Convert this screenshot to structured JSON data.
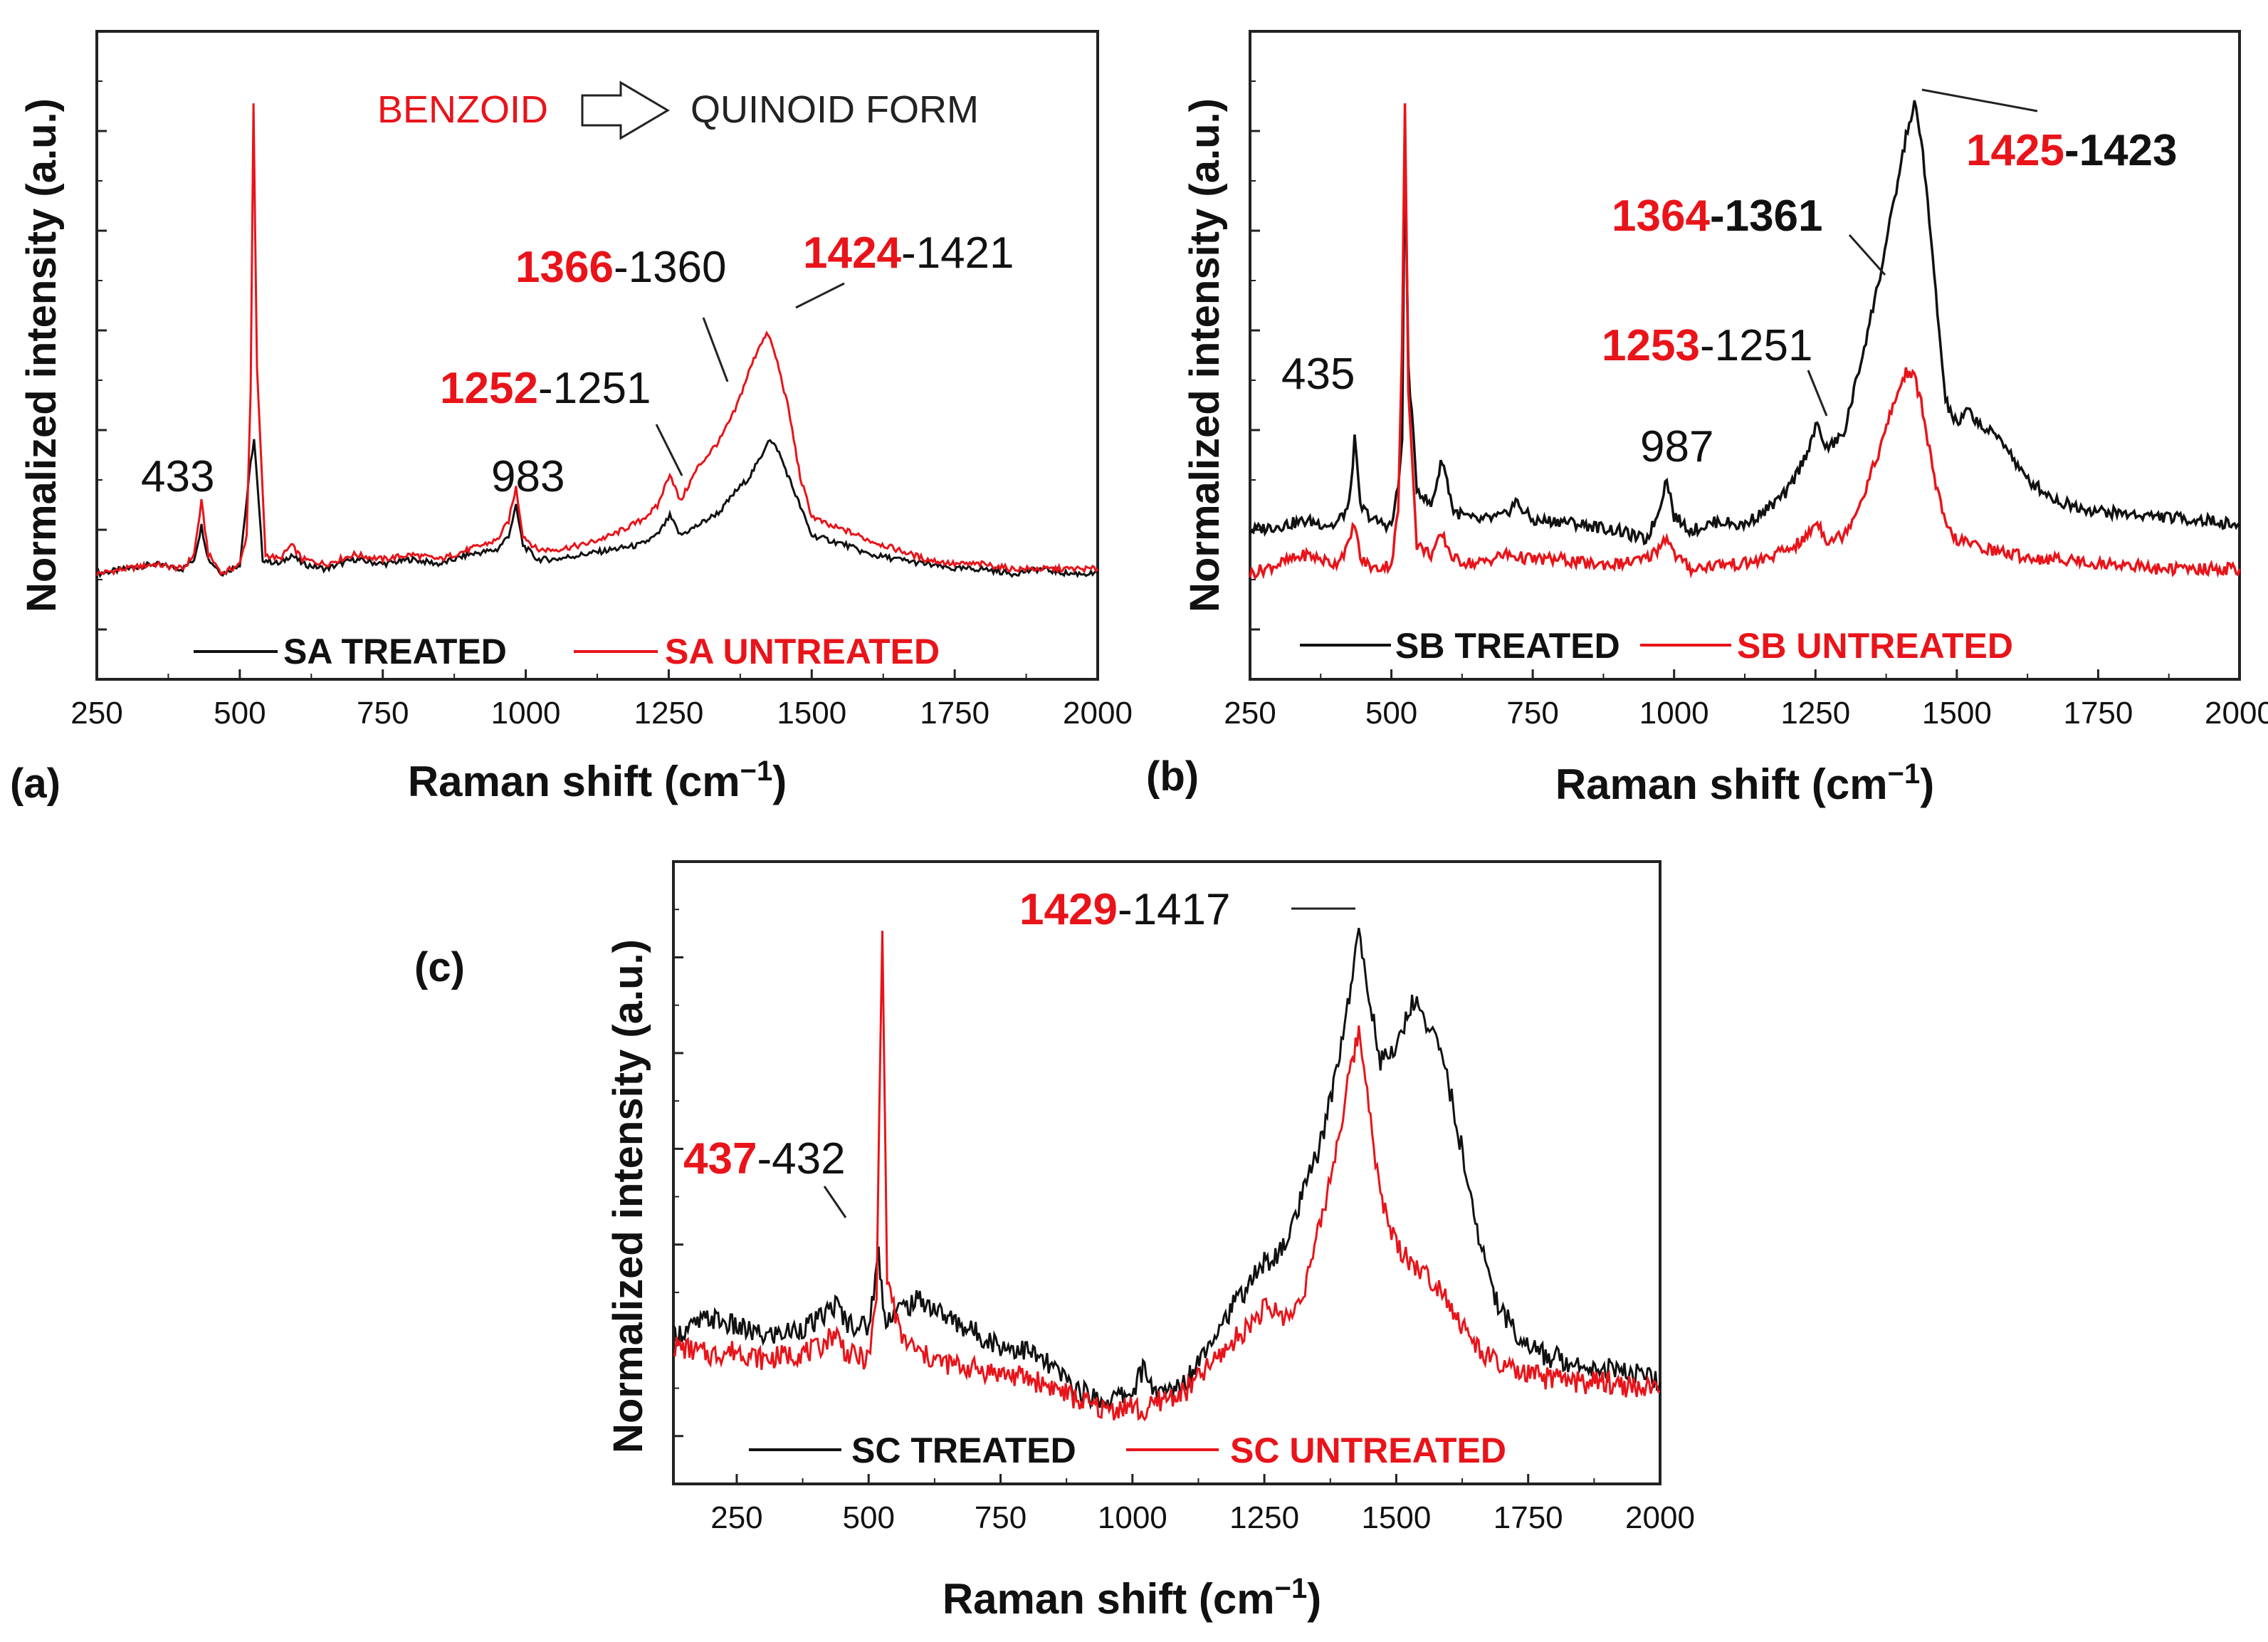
{
  "colors": {
    "treated": "#111111",
    "untreated": "#e8141a"
  },
  "chart_data": [
    {
      "type": "line",
      "panel_label": "(a)",
      "xlabel": "Raman shift (cm",
      "xlabel_sup": "−1",
      "xlabel_end": ")",
      "ylabel": "Normalized intensity (a.u.)",
      "xlim": [
        250,
        2000
      ],
      "ylim": [
        -0.2,
        1.15
      ],
      "x_ticks": [
        250,
        500,
        750,
        1000,
        1250,
        1500,
        1750,
        2000
      ],
      "transform_from": "BENZOID",
      "transform_to": "QUINOID FORM",
      "series": [
        {
          "name": "SA TREATED",
          "color": "#111111",
          "x": [
            250,
            300,
            350,
            400,
            420,
            433,
            445,
            470,
            500,
            519,
            525,
            540,
            570,
            590,
            610,
            650,
            700,
            750,
            800,
            850,
            900,
            950,
            970,
            983,
            995,
            1020,
            1050,
            1100,
            1150,
            1200,
            1230,
            1252,
            1270,
            1300,
            1340,
            1366,
            1390,
            1410,
            1424,
            1440,
            1460,
            1480,
            1500,
            1530,
            1560,
            1600,
            1650,
            1700,
            1750,
            1800,
            1850,
            1900,
            1950,
            2000
          ],
          "values": [
            0.02,
            0.03,
            0.04,
            0.03,
            0.05,
            0.12,
            0.05,
            0.02,
            0.04,
            0.25,
            0.3,
            0.05,
            0.04,
            0.06,
            0.04,
            0.03,
            0.05,
            0.04,
            0.05,
            0.04,
            0.06,
            0.07,
            0.1,
            0.16,
            0.08,
            0.05,
            0.05,
            0.06,
            0.07,
            0.08,
            0.1,
            0.14,
            0.1,
            0.12,
            0.15,
            0.19,
            0.22,
            0.26,
            0.3,
            0.28,
            0.22,
            0.16,
            0.1,
            0.09,
            0.08,
            0.06,
            0.05,
            0.04,
            0.03,
            0.03,
            0.02,
            0.03,
            0.02,
            0.02
          ]
        },
        {
          "name": "SA UNTREATED",
          "color": "#e8141a",
          "x": [
            250,
            300,
            350,
            400,
            420,
            433,
            445,
            470,
            500,
            512,
            519,
            524,
            530,
            545,
            570,
            590,
            610,
            650,
            700,
            750,
            800,
            850,
            900,
            950,
            970,
            983,
            995,
            1020,
            1050,
            1100,
            1150,
            1200,
            1230,
            1252,
            1270,
            1300,
            1340,
            1366,
            1390,
            1410,
            1424,
            1440,
            1460,
            1480,
            1500,
            1530,
            1560,
            1600,
            1650,
            1700,
            1750,
            1800,
            1850,
            1900,
            1950,
            2000
          ],
          "values": [
            0.02,
            0.03,
            0.04,
            0.03,
            0.06,
            0.17,
            0.06,
            0.02,
            0.04,
            0.1,
            0.4,
            1.0,
            0.45,
            0.06,
            0.05,
            0.08,
            0.05,
            0.04,
            0.06,
            0.05,
            0.06,
            0.05,
            0.07,
            0.09,
            0.13,
            0.2,
            0.1,
            0.07,
            0.07,
            0.08,
            0.1,
            0.13,
            0.16,
            0.23,
            0.17,
            0.24,
            0.3,
            0.36,
            0.44,
            0.5,
            0.52,
            0.46,
            0.36,
            0.22,
            0.14,
            0.12,
            0.11,
            0.09,
            0.07,
            0.05,
            0.04,
            0.04,
            0.03,
            0.03,
            0.03,
            0.03
          ]
        }
      ],
      "annotations": [
        {
          "a": "",
          "sep": "",
          "b": "433"
        },
        {
          "a": "",
          "sep": "",
          "b": "983"
        },
        {
          "a": "1252",
          "sep": "-",
          "b": "1251"
        },
        {
          "a": "1366",
          "sep": "-",
          "b": "1360"
        },
        {
          "a": "1424",
          "sep": "-",
          "b": "1421"
        }
      ]
    },
    {
      "type": "line",
      "panel_label": "(b)",
      "xlabel": "Raman shift (cm",
      "xlabel_sup": "−1",
      "xlabel_end": ")",
      "ylabel": "Normalized intensity (a.u.)",
      "xlim": [
        250,
        2000
      ],
      "ylim": [
        -0.2,
        1.15
      ],
      "x_ticks": [
        250,
        500,
        750,
        1000,
        1250,
        1500,
        1750,
        2000
      ],
      "series": [
        {
          "name": "SB TREATED",
          "color": "#111111",
          "x": [
            250,
            300,
            350,
            400,
            425,
            435,
            445,
            470,
            500,
            512,
            519,
            524,
            530,
            545,
            570,
            590,
            610,
            650,
            700,
            720,
            750,
            800,
            850,
            900,
            950,
            970,
            987,
            1000,
            1030,
            1080,
            1120,
            1160,
            1200,
            1230,
            1253,
            1270,
            1300,
            1330,
            1364,
            1390,
            1410,
            1425,
            1440,
            1460,
            1480,
            1500,
            1520,
            1550,
            1580,
            1620,
            1680,
            1750,
            1850,
            1950,
            2000
          ],
          "values": [
            0.11,
            0.12,
            0.13,
            0.12,
            0.16,
            0.3,
            0.16,
            0.13,
            0.12,
            0.2,
            0.3,
            0.92,
            0.45,
            0.2,
            0.16,
            0.26,
            0.15,
            0.13,
            0.14,
            0.17,
            0.13,
            0.13,
            0.12,
            0.11,
            0.09,
            0.14,
            0.22,
            0.14,
            0.11,
            0.13,
            0.12,
            0.15,
            0.19,
            0.26,
            0.33,
            0.28,
            0.31,
            0.46,
            0.64,
            0.8,
            0.93,
            1.0,
            0.9,
            0.64,
            0.38,
            0.33,
            0.36,
            0.32,
            0.3,
            0.22,
            0.17,
            0.15,
            0.14,
            0.13,
            0.12
          ]
        },
        {
          "name": "SB UNTREATED",
          "color": "#e8141a",
          "x": [
            250,
            300,
            350,
            400,
            425,
            435,
            445,
            470,
            500,
            512,
            519,
            524,
            530,
            545,
            570,
            590,
            610,
            650,
            700,
            750,
            800,
            850,
            900,
            950,
            970,
            987,
            1000,
            1030,
            1080,
            1120,
            1160,
            1200,
            1230,
            1253,
            1270,
            1300,
            1330,
            1364,
            1390,
            1410,
            1425,
            1440,
            1460,
            1480,
            1500,
            1530,
            1560,
            1600,
            1650,
            1700,
            1750,
            1800,
            1850,
            1900,
            1950,
            2000
          ],
          "values": [
            0.02,
            0.04,
            0.06,
            0.04,
            0.08,
            0.13,
            0.05,
            0.03,
            0.04,
            0.15,
            0.5,
            1.0,
            0.4,
            0.08,
            0.06,
            0.1,
            0.05,
            0.04,
            0.06,
            0.05,
            0.05,
            0.04,
            0.04,
            0.05,
            0.07,
            0.1,
            0.06,
            0.03,
            0.04,
            0.04,
            0.05,
            0.07,
            0.09,
            0.13,
            0.09,
            0.1,
            0.17,
            0.28,
            0.38,
            0.44,
            0.43,
            0.36,
            0.22,
            0.12,
            0.09,
            0.08,
            0.07,
            0.06,
            0.05,
            0.05,
            0.04,
            0.04,
            0.03,
            0.03,
            0.03,
            0.03
          ]
        }
      ],
      "annotations": [
        {
          "a": "",
          "sep": "",
          "b": "435"
        },
        {
          "a": "",
          "sep": "",
          "b": "987"
        },
        {
          "a": "1253",
          "sep": "-",
          "b": "1251"
        },
        {
          "a": "1364",
          "sep": "-",
          "b": "1361"
        },
        {
          "a": "1425",
          "sep": "-",
          "b": "1423"
        }
      ]
    },
    {
      "type": "line",
      "panel_label": "(c)",
      "xlabel": "Raman shift (cm",
      "xlabel_sup": "−1",
      "xlabel_end": ")",
      "ylabel": "Normalized intensity (a.u.)",
      "xlim": [
        130,
        2000
      ],
      "ylim": [
        -0.2,
        1.15
      ],
      "x_ticks": [
        250,
        500,
        750,
        1000,
        1250,
        1500,
        1750,
        2000
      ],
      "series": [
        {
          "name": "SC TREATED",
          "color": "#111111",
          "x": [
            130,
            200,
            250,
            300,
            350,
            400,
            437,
            460,
            500,
            519,
            530,
            560,
            600,
            650,
            700,
            750,
            800,
            850,
            900,
            950,
            1000,
            1020,
            1050,
            1100,
            1150,
            1200,
            1250,
            1280,
            1300,
            1330,
            1360,
            1390,
            1417,
            1429,
            1445,
            1470,
            1500,
            1530,
            1560,
            1590,
            1620,
            1650,
            1690,
            1730,
            1780,
            1850,
            1900,
            1950,
            2000
          ],
          "values": [
            0.12,
            0.16,
            0.14,
            0.12,
            0.13,
            0.15,
            0.19,
            0.15,
            0.14,
            0.3,
            0.16,
            0.18,
            0.2,
            0.16,
            0.13,
            0.1,
            0.09,
            0.05,
            0.0,
            -0.02,
            0.0,
            0.05,
            -0.01,
            0.02,
            0.12,
            0.2,
            0.28,
            0.3,
            0.35,
            0.45,
            0.55,
            0.72,
            0.9,
            1.0,
            0.88,
            0.72,
            0.74,
            0.85,
            0.8,
            0.72,
            0.55,
            0.36,
            0.2,
            0.12,
            0.08,
            0.06,
            0.05,
            0.04,
            0.02
          ]
        },
        {
          "name": "SC UNTREATED",
          "color": "#e8141a",
          "x": [
            130,
            200,
            250,
            300,
            350,
            400,
            437,
            460,
            500,
            515,
            520,
            526,
            535,
            560,
            600,
            650,
            700,
            750,
            800,
            850,
            900,
            950,
            1000,
            1020,
            1050,
            1100,
            1150,
            1200,
            1250,
            1280,
            1300,
            1330,
            1360,
            1390,
            1417,
            1429,
            1445,
            1470,
            1500,
            1530,
            1560,
            1590,
            1620,
            1650,
            1690,
            1730,
            1780,
            1850,
            1900,
            1950,
            2000
          ],
          "values": [
            0.1,
            0.08,
            0.09,
            0.07,
            0.08,
            0.09,
            0.13,
            0.08,
            0.07,
            0.2,
            0.6,
            1.0,
            0.25,
            0.12,
            0.08,
            0.06,
            0.05,
            0.04,
            0.03,
            0.01,
            -0.02,
            -0.04,
            -0.03,
            -0.05,
            -0.02,
            0.0,
            0.06,
            0.12,
            0.18,
            0.17,
            0.16,
            0.24,
            0.38,
            0.55,
            0.72,
            0.78,
            0.66,
            0.42,
            0.32,
            0.28,
            0.25,
            0.22,
            0.15,
            0.1,
            0.06,
            0.04,
            0.03,
            0.02,
            0.02,
            0.01,
            0.0
          ]
        }
      ],
      "annotations": [
        {
          "a": "437",
          "sep": "-",
          "b": "432"
        },
        {
          "a": "1429",
          "sep": "-",
          "b": "1417"
        }
      ]
    }
  ]
}
